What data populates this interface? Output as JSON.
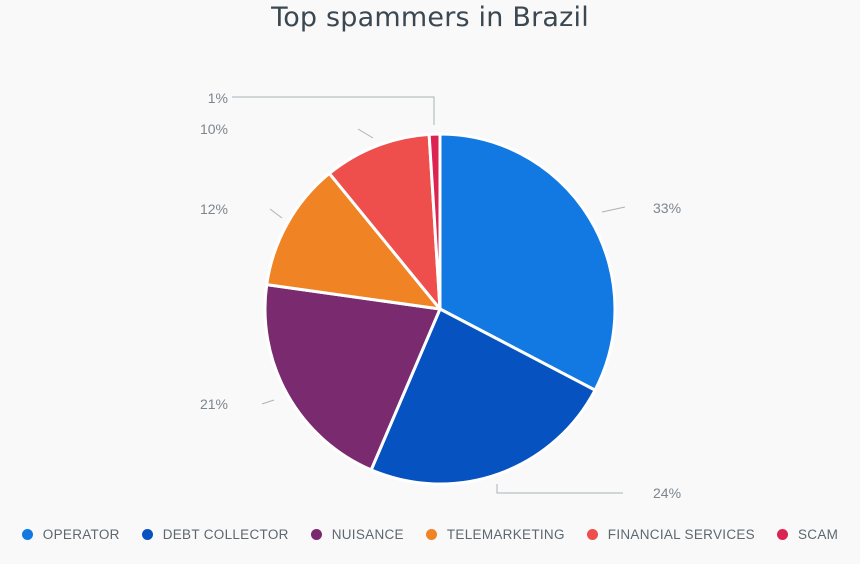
{
  "chart_data": {
    "type": "pie",
    "title": "Top spammers in Brazil",
    "slices": [
      {
        "name": "OPERATOR",
        "value": 33,
        "label": "33%",
        "color": "#1279e3"
      },
      {
        "name": "DEBT COLLECTOR",
        "value": 24,
        "label": "24%",
        "color": "#0652c1"
      },
      {
        "name": "NUISANCE",
        "value": 21,
        "label": "21%",
        "color": "#7a2a6e"
      },
      {
        "name": "TELEMARKETING",
        "value": 12,
        "label": "12%",
        "color": "#f08324"
      },
      {
        "name": "FINANCIAL SERVICES",
        "value": 10,
        "label": "10%",
        "color": "#ee4f4d"
      },
      {
        "name": "SCAM",
        "value": 1,
        "label": "1%",
        "color": "#dc2452"
      }
    ],
    "legend_position": "bottom"
  }
}
